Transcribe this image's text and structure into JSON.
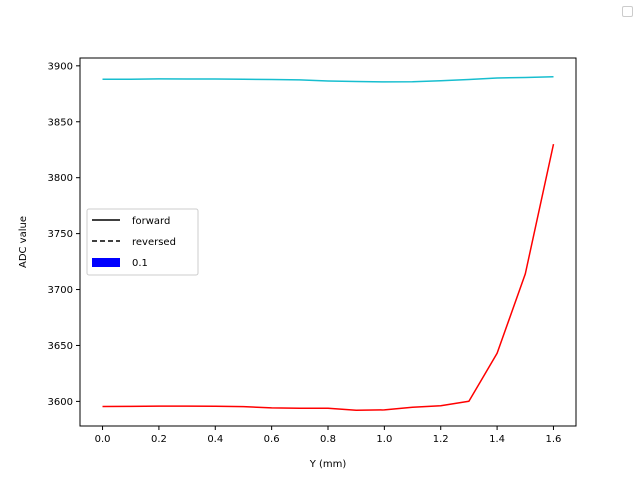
{
  "chart_data": {
    "type": "line",
    "xlabel": "Y (mm)",
    "ylabel": "ADC value",
    "xlim": [
      -0.08,
      1.68
    ],
    "ylim": [
      3578,
      3907
    ],
    "xticks": [
      0.0,
      0.2,
      0.4,
      0.6,
      0.8,
      1.0,
      1.2,
      1.4,
      1.6
    ],
    "xtick_labels": [
      "0.0",
      "0.2",
      "0.4",
      "0.6",
      "0.8",
      "1.0",
      "1.2",
      "1.4",
      "1.6"
    ],
    "yticks": [
      3600,
      3650,
      3700,
      3750,
      3800,
      3850,
      3900
    ],
    "ytick_labels": [
      "3600",
      "3650",
      "3700",
      "3750",
      "3800",
      "3850",
      "3900"
    ],
    "grid": false,
    "series": [
      {
        "color": "#17becf",
        "x": [
          0.0,
          0.1,
          0.2,
          0.3,
          0.4,
          0.5,
          0.6,
          0.7,
          0.8,
          0.9,
          1.0,
          1.1,
          1.2,
          1.3,
          1.4,
          1.5,
          1.6
        ],
        "y": [
          3888,
          3888,
          3888.3,
          3888.2,
          3888.2,
          3888,
          3887.8,
          3887.4,
          3886.4,
          3886,
          3885.6,
          3885.8,
          3886.6,
          3887.8,
          3889.1,
          3889.6,
          3890.2
        ]
      },
      {
        "color": "#ff0000",
        "x": [
          0.0,
          0.1,
          0.2,
          0.3,
          0.4,
          0.5,
          0.6,
          0.7,
          0.8,
          0.9,
          1.0,
          1.1,
          1.2,
          1.3,
          1.4,
          1.5,
          1.6
        ],
        "y": [
          3595.4,
          3595.5,
          3595.8,
          3595.8,
          3595.7,
          3595.3,
          3594.2,
          3593.9,
          3593.8,
          3592,
          3592.4,
          3594.8,
          3596.1,
          3600.1,
          3643,
          3714,
          3830
        ]
      }
    ],
    "legend": {
      "placement": "center-left",
      "entries": [
        {
          "label": "forward",
          "style": "solid",
          "color": "#000000"
        },
        {
          "label": "reversed",
          "style": "dashed",
          "color": "#000000"
        },
        {
          "label": "0.1",
          "style": "patch",
          "color": "#0000ff"
        }
      ]
    },
    "corner_legend": {
      "placement": "top-right",
      "entries": []
    }
  }
}
